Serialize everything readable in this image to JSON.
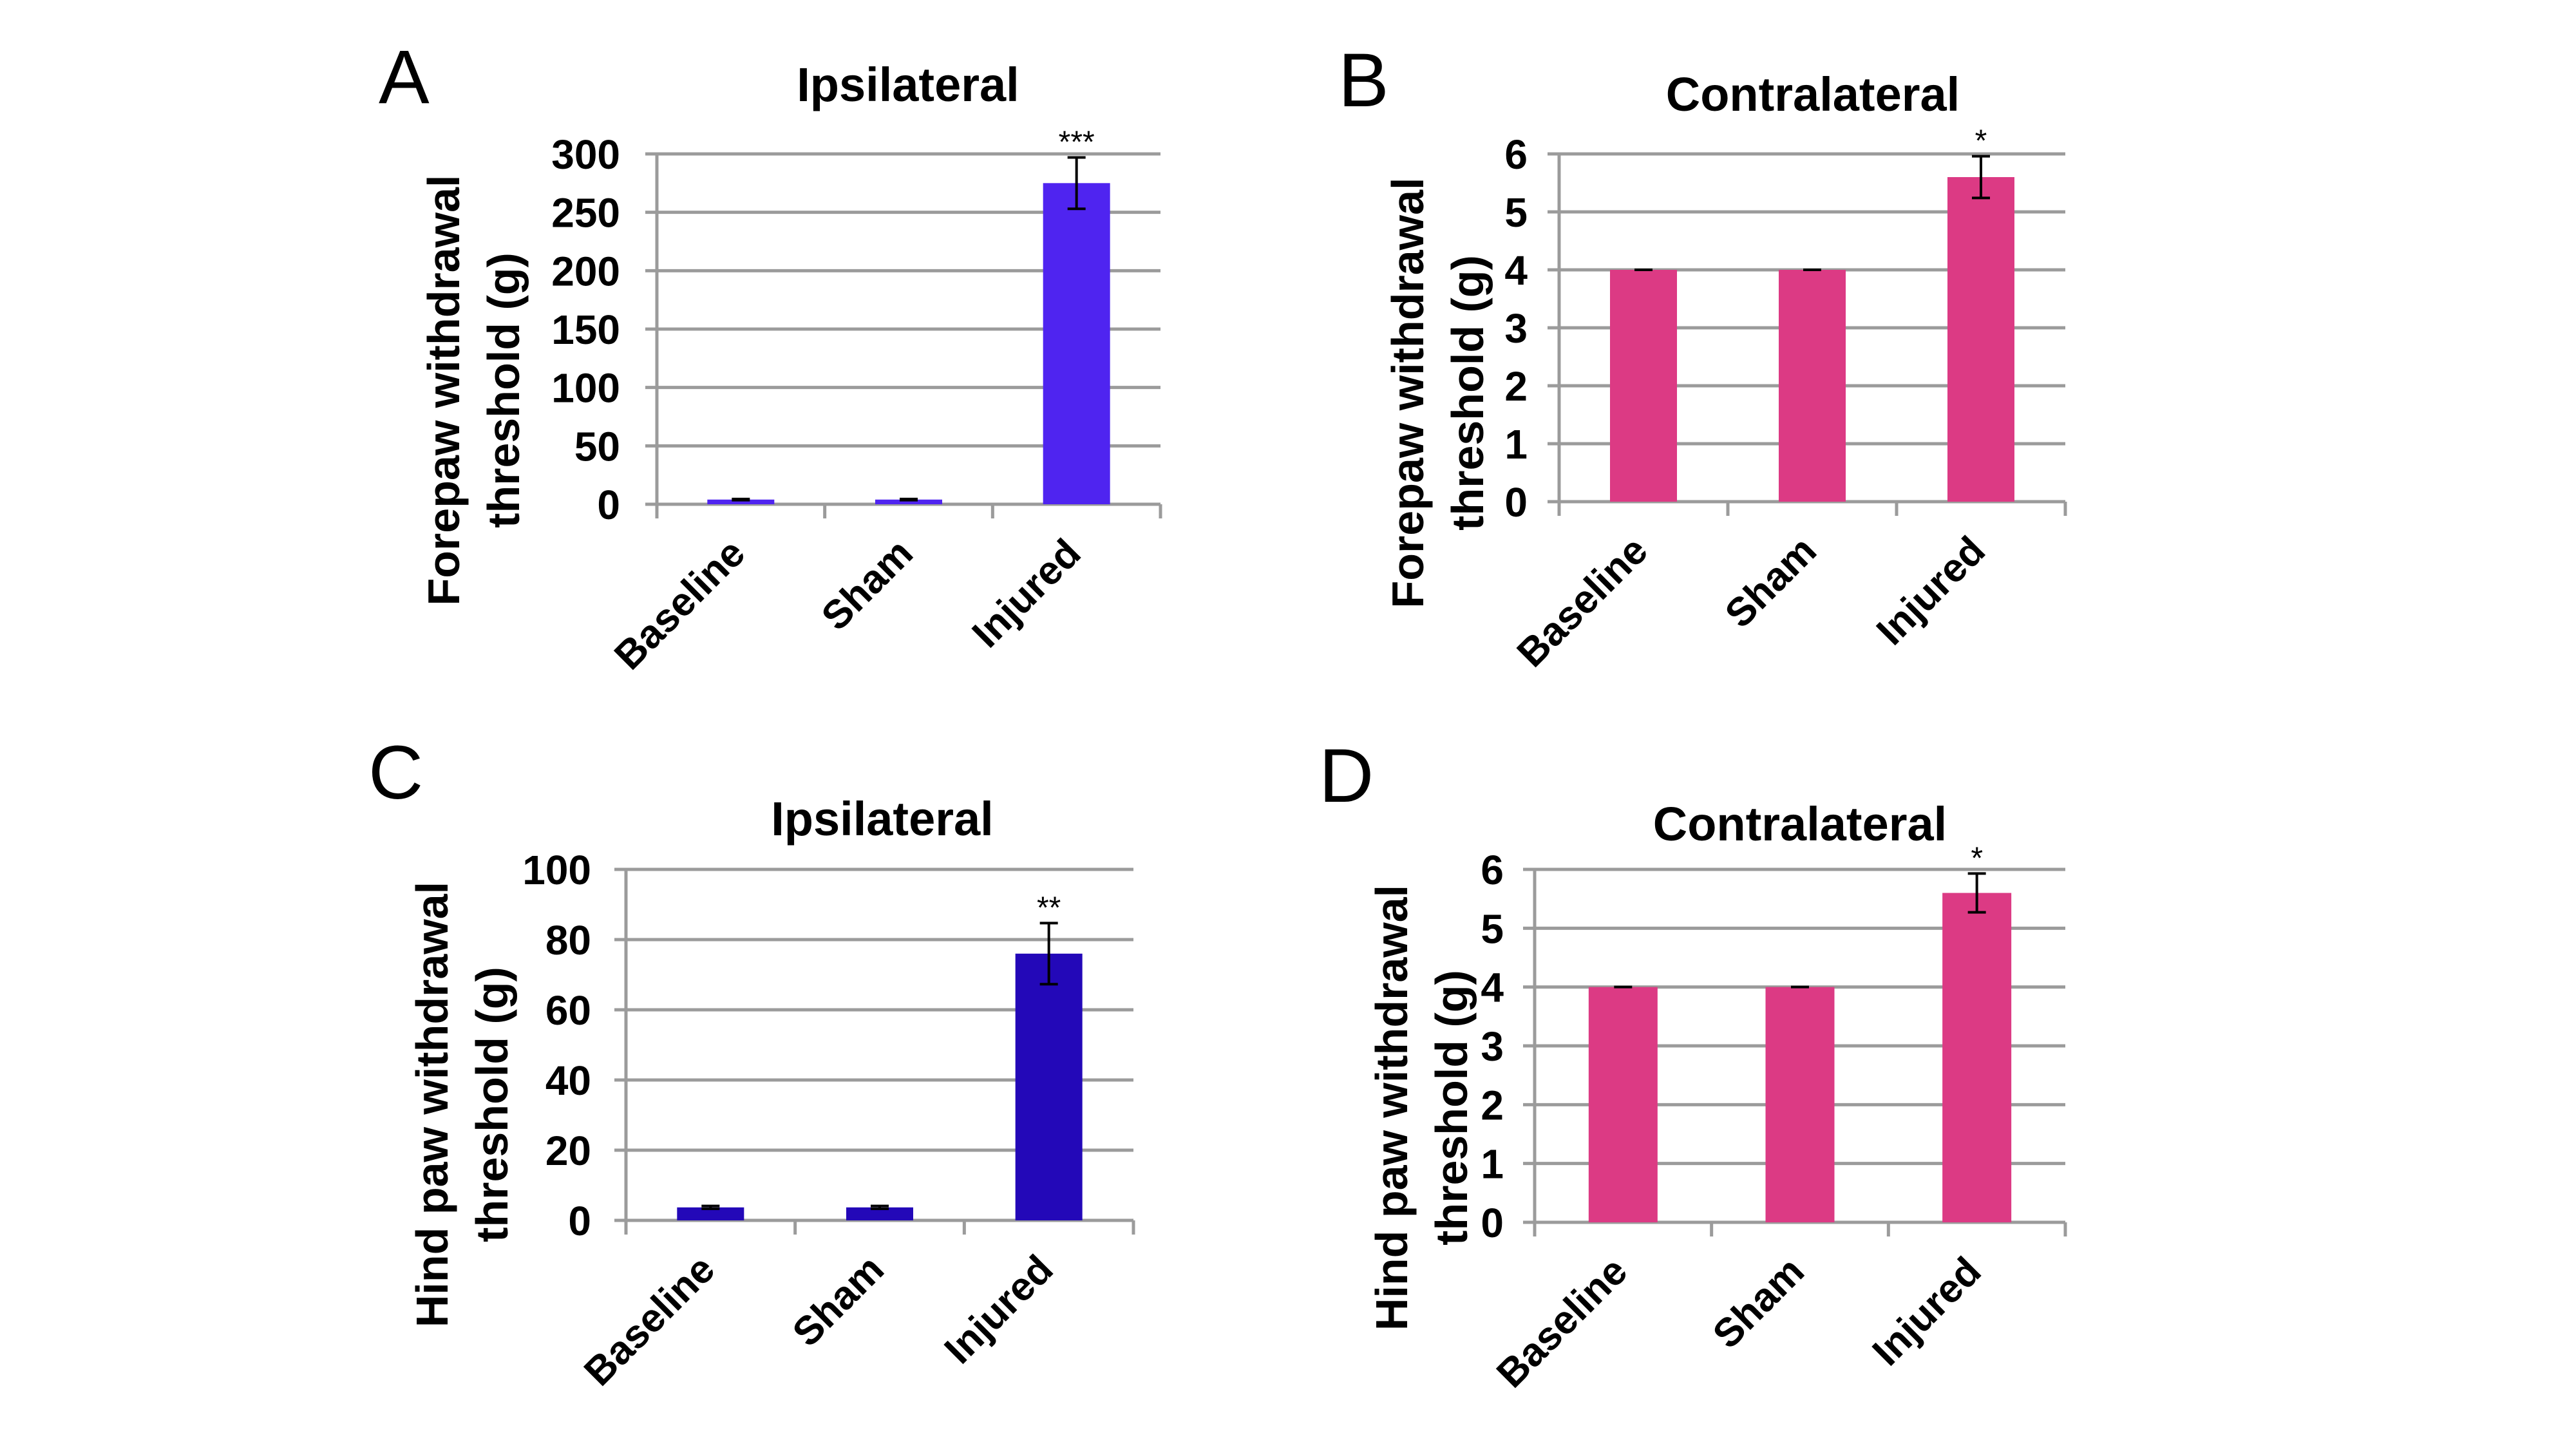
{
  "figure": {
    "panels": [
      "A",
      "B",
      "C",
      "D"
    ]
  },
  "chart_data": [
    {
      "panel": "A",
      "type": "bar",
      "title": "Ipsilateral",
      "xlabel": "",
      "ylabel_lines": [
        "Forepaw withdrawal",
        "threshold (g)"
      ],
      "ylabel": "Forepaw withdrawal threshold (g)",
      "categories": [
        "Baseline",
        "Sham",
        "Injured"
      ],
      "values": [
        4,
        4,
        275
      ],
      "errors": [
        0.5,
        0.5,
        22
      ],
      "significance": [
        "",
        "",
        "***"
      ],
      "yticks": [
        0,
        50,
        100,
        150,
        200,
        250,
        300
      ],
      "ylim": [
        0,
        300
      ],
      "grid": true,
      "legend": "none",
      "color": "#4f24f0"
    },
    {
      "panel": "B",
      "type": "bar",
      "title": "Contralateral",
      "xlabel": "",
      "ylabel_lines": [
        "Forepaw withdrawal",
        "threshold (g)"
      ],
      "ylabel": "Forepaw withdrawal threshold (g)",
      "categories": [
        "Baseline",
        "Sham",
        "Injured"
      ],
      "values": [
        4.0,
        4.0,
        5.6
      ],
      "errors": [
        0.0,
        0.0,
        0.36
      ],
      "significance": [
        "",
        "",
        "*"
      ],
      "yticks": [
        0,
        1,
        2,
        3,
        4,
        5,
        6
      ],
      "ylim": [
        0,
        6
      ],
      "grid": true,
      "legend": "none",
      "color": "#dc3a84"
    },
    {
      "panel": "C",
      "type": "bar",
      "title": "Ipsilateral",
      "xlabel": "",
      "ylabel_lines": [
        "Hind paw withdrawal",
        "threshold (g)"
      ],
      "ylabel": "Hind paw withdrawal threshold (g)",
      "categories": [
        "Baseline",
        "Sham",
        "Injured"
      ],
      "values": [
        3.7,
        3.7,
        76
      ],
      "errors": [
        0.4,
        0.4,
        8.7
      ],
      "significance": [
        "",
        "",
        "**"
      ],
      "yticks": [
        0,
        20,
        40,
        60,
        80,
        100
      ],
      "ylim": [
        0,
        100
      ],
      "grid": true,
      "legend": "none",
      "color": "#2308b8"
    },
    {
      "panel": "D",
      "type": "bar",
      "title": "Contralateral",
      "xlabel": "",
      "ylabel_lines": [
        "Hind paw withdrawal",
        "threshold (g)"
      ],
      "ylabel": "Hind paw withdrawal threshold (g)",
      "categories": [
        "Baseline",
        "Sham",
        "Injured"
      ],
      "values": [
        4.0,
        4.0,
        5.6
      ],
      "errors": [
        0.0,
        0.0,
        0.33
      ],
      "significance": [
        "",
        "",
        "*"
      ],
      "yticks": [
        0,
        1,
        2,
        3,
        4,
        5,
        6
      ],
      "ylim": [
        0,
        6
      ],
      "grid": true,
      "legend": "none",
      "color": "#dc3a84"
    }
  ]
}
